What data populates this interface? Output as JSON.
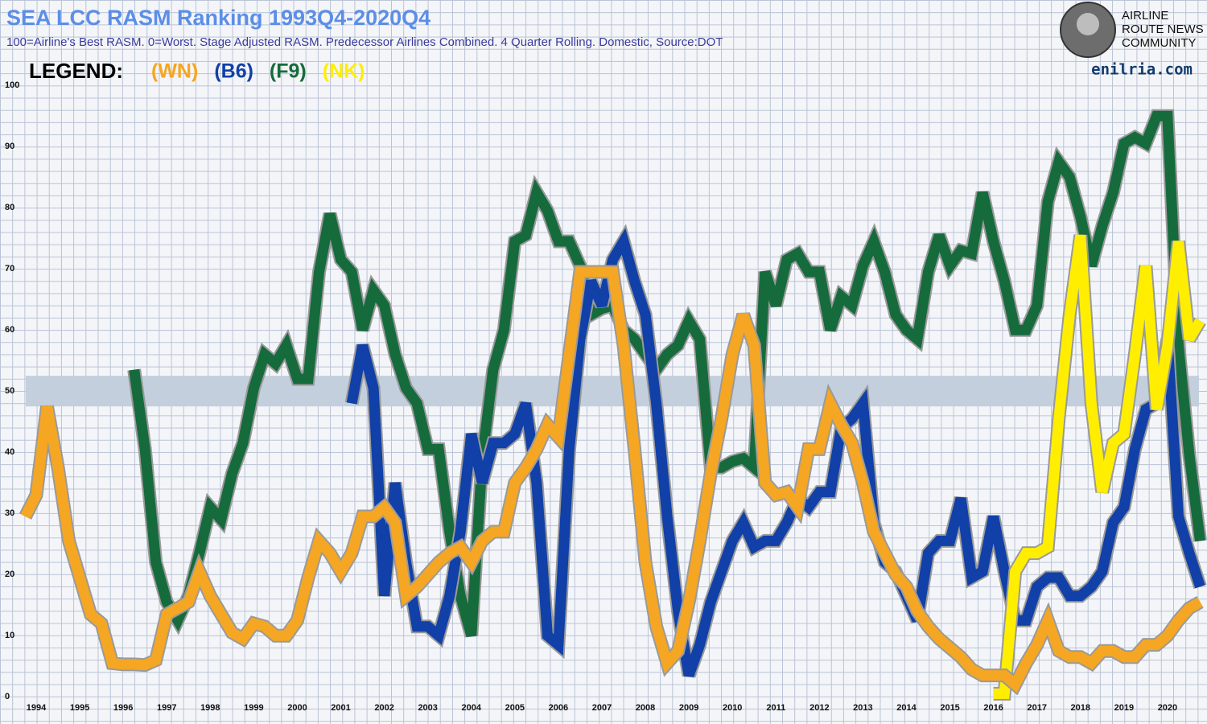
{
  "chart_data": {
    "type": "line",
    "title": "SEA LCC RASM Ranking 1993Q4-2020Q4",
    "subtitle": "100=Airline's Best RASM. 0=Worst. Stage Adjusted RASM.  Predecessor Airlines Combined. 4 Quarter Rolling. Domestic, Source:DOT",
    "legend_label": "LEGEND:",
    "logo_text": [
      "AIRLINE",
      "ROUTE NEWS",
      "COMMUNITY"
    ],
    "website": "enilria.com",
    "ylim": [
      0,
      100
    ],
    "yticks": [
      0,
      10,
      20,
      30,
      40,
      50,
      60,
      70,
      80,
      90,
      100
    ],
    "highlight_band": [
      48,
      53
    ],
    "categories": [
      null,
      "1994",
      null,
      null,
      null,
      "1995",
      null,
      null,
      null,
      "1996",
      null,
      null,
      null,
      "1997",
      null,
      null,
      null,
      "1998",
      null,
      null,
      null,
      "1999",
      null,
      null,
      null,
      "2000",
      null,
      null,
      null,
      "2001",
      null,
      null,
      null,
      "2002",
      null,
      null,
      null,
      "2003",
      null,
      null,
      null,
      "2004",
      null,
      null,
      null,
      "2005",
      null,
      null,
      null,
      "2006",
      null,
      null,
      null,
      "2007",
      null,
      null,
      null,
      "2008",
      null,
      null,
      null,
      "2009",
      null,
      null,
      null,
      "2010",
      null,
      null,
      null,
      "2011",
      null,
      null,
      null,
      "2012",
      null,
      null,
      null,
      "2013",
      null,
      null,
      null,
      "2014",
      null,
      null,
      null,
      "2015",
      null,
      null,
      null,
      "2016",
      null,
      null,
      null,
      "2017",
      null,
      null,
      null,
      "2018",
      null,
      null,
      null,
      "2019",
      null,
      null,
      null,
      "2020",
      null,
      null,
      null
    ],
    "series": [
      {
        "name": "(F9)",
        "color": "#156b3c",
        "values": [
          null,
          null,
          null,
          null,
          null,
          null,
          null,
          null,
          null,
          null,
          54,
          41,
          22.5,
          16,
          13,
          17,
          24,
          31.5,
          29.5,
          37,
          42,
          51,
          56.5,
          55,
          58,
          52.5,
          52.5,
          70,
          79.5,
          72,
          70,
          60.5,
          67,
          64.5,
          56.5,
          51,
          48.5,
          41,
          41,
          27.5,
          17,
          10.5,
          39.5,
          54,
          60.5,
          75,
          76,
          83,
          80,
          75,
          75,
          71,
          63,
          64,
          64.5,
          60.5,
          59,
          56.5,
          54,
          56.5,
          58,
          62,
          59,
          38,
          38,
          39,
          39.5,
          38,
          70,
          64.5,
          72,
          73,
          70,
          70,
          60.5,
          66,
          64.5,
          71,
          75,
          70,
          63,
          60.5,
          59,
          70,
          76,
          71,
          73.5,
          73,
          83,
          75,
          68.5,
          60.5,
          60.5,
          64.5,
          81.5,
          88,
          85.5,
          79,
          71,
          77.5,
          83,
          91,
          92,
          91,
          95.5,
          95.5,
          58,
          40,
          26
        ]
      },
      {
        "name": "(B6)",
        "color": "#1040a8",
        "values": [
          null,
          null,
          null,
          null,
          null,
          null,
          null,
          null,
          null,
          null,
          null,
          null,
          null,
          null,
          null,
          null,
          null,
          null,
          null,
          null,
          null,
          null,
          null,
          null,
          null,
          null,
          null,
          null,
          null,
          null,
          48.5,
          58,
          51,
          17,
          35.5,
          22.5,
          12,
          12,
          10.5,
          17,
          27.5,
          43.5,
          35.5,
          42,
          42,
          43.5,
          48.5,
          35.5,
          10.5,
          9,
          41,
          59,
          68.5,
          64.5,
          72,
          75,
          68.5,
          63,
          48.5,
          30,
          14.5,
          4,
          9,
          16,
          21,
          26,
          29,
          25,
          26,
          26,
          29,
          33,
          31.5,
          34,
          34,
          44.5,
          46,
          48.5,
          29,
          22.5,
          21,
          17,
          13,
          24,
          26,
          26,
          33,
          20,
          21,
          30,
          21,
          13,
          13,
          18.5,
          20,
          20,
          17,
          17,
          18.5,
          21,
          29,
          31.5,
          41,
          47.5,
          48.5,
          59,
          30,
          24,
          18.5
        ]
      },
      {
        "name": "(NK)",
        "color": "#ffee00",
        "values": [
          null,
          null,
          null,
          null,
          null,
          null,
          null,
          null,
          null,
          null,
          null,
          null,
          null,
          null,
          null,
          null,
          null,
          null,
          null,
          null,
          null,
          null,
          null,
          null,
          null,
          null,
          null,
          null,
          null,
          null,
          null,
          null,
          null,
          null,
          null,
          null,
          null,
          null,
          null,
          null,
          null,
          null,
          null,
          null,
          null,
          null,
          null,
          null,
          null,
          null,
          null,
          null,
          null,
          null,
          null,
          null,
          null,
          null,
          null,
          null,
          null,
          null,
          null,
          null,
          null,
          null,
          null,
          null,
          null,
          null,
          null,
          null,
          null,
          null,
          null,
          null,
          null,
          null,
          null,
          null,
          null,
          null,
          null,
          null,
          null,
          null,
          null,
          null,
          null,
          1,
          1,
          21,
          24,
          24,
          25,
          46,
          63,
          76,
          48.5,
          34,
          42,
          43.5,
          56.5,
          71,
          47.5,
          58,
          75,
          59,
          62
        ]
      },
      {
        "name": "(WN)",
        "color": "#f5a623",
        "values": [
          30,
          33.5,
          48,
          38,
          26,
          20,
          14,
          12.5,
          6,
          5.8,
          5.8,
          5.7,
          6.5,
          14,
          15,
          16,
          21,
          17,
          14,
          11,
          10,
          12.5,
          12,
          10.5,
          10.5,
          13,
          20,
          26,
          24,
          21,
          24,
          30,
          30,
          31.5,
          29,
          17,
          18.5,
          20.5,
          22.5,
          24,
          25,
          22.5,
          26,
          27.5,
          27.5,
          35.5,
          38,
          41,
          45,
          43,
          56.5,
          70,
          70,
          70,
          70,
          58,
          41,
          22.5,
          12,
          6,
          8,
          16,
          26,
          37,
          46,
          56.5,
          63,
          58,
          35.5,
          33.5,
          34,
          31.5,
          41,
          41,
          48.5,
          45,
          42,
          35.5,
          27.5,
          24,
          20.5,
          18.5,
          14.5,
          12,
          10,
          8.5,
          7,
          5,
          4,
          4,
          4,
          2.5,
          6,
          9,
          13,
          8,
          7,
          7,
          6,
          8,
          8,
          7,
          7,
          9,
          9,
          10.5,
          13,
          15,
          16
        ]
      }
    ]
  }
}
